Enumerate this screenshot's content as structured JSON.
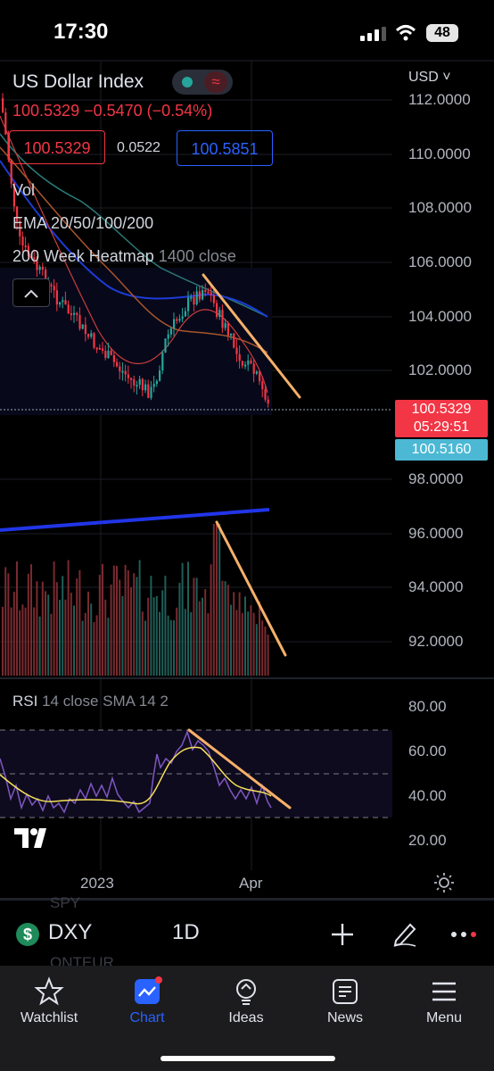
{
  "status": {
    "time": "17:30",
    "battery": "48"
  },
  "legend": {
    "title": "US Dollar Index",
    "quote": "100.5329 −0.5470 (−0.54%)",
    "bid": "100.5329",
    "spread": "0.0522",
    "ask": "100.5851",
    "indicators": [
      "Vol",
      "EMA 20/50/100/200"
    ],
    "heatmap_name": "200 Week Heatmap",
    "heatmap_params": "1400 close"
  },
  "currency": "USD",
  "price_axis": [
    "112.0000",
    "110.0000",
    "108.0000",
    "106.0000",
    "104.0000",
    "102.0000",
    "98.0000",
    "96.0000",
    "94.0000",
    "92.0000"
  ],
  "price_tags": {
    "last": "100.5329",
    "countdown": "05:29:51",
    "alt": "100.5160"
  },
  "rsi": {
    "label": "RSI",
    "params": "14 close SMA 14 2",
    "axis": [
      "80.00",
      "60.00",
      "40.00",
      "20.00"
    ]
  },
  "time_axis": [
    "2023",
    "Apr"
  ],
  "toolbar": {
    "ghost_top": "SPY",
    "symbol": "DXY",
    "timeframe": "1D",
    "ghost_bottom": "ONTEUR"
  },
  "tabs": [
    "Watchlist",
    "Chart",
    "Ideas",
    "News",
    "Menu"
  ],
  "colors": {
    "up": "#26a69a",
    "down": "#f23645",
    "accent": "#2962ff",
    "trendline": "#f5b06a",
    "rsi_line": "#7e57c2",
    "rsi_sma": "#f5e05a"
  }
}
